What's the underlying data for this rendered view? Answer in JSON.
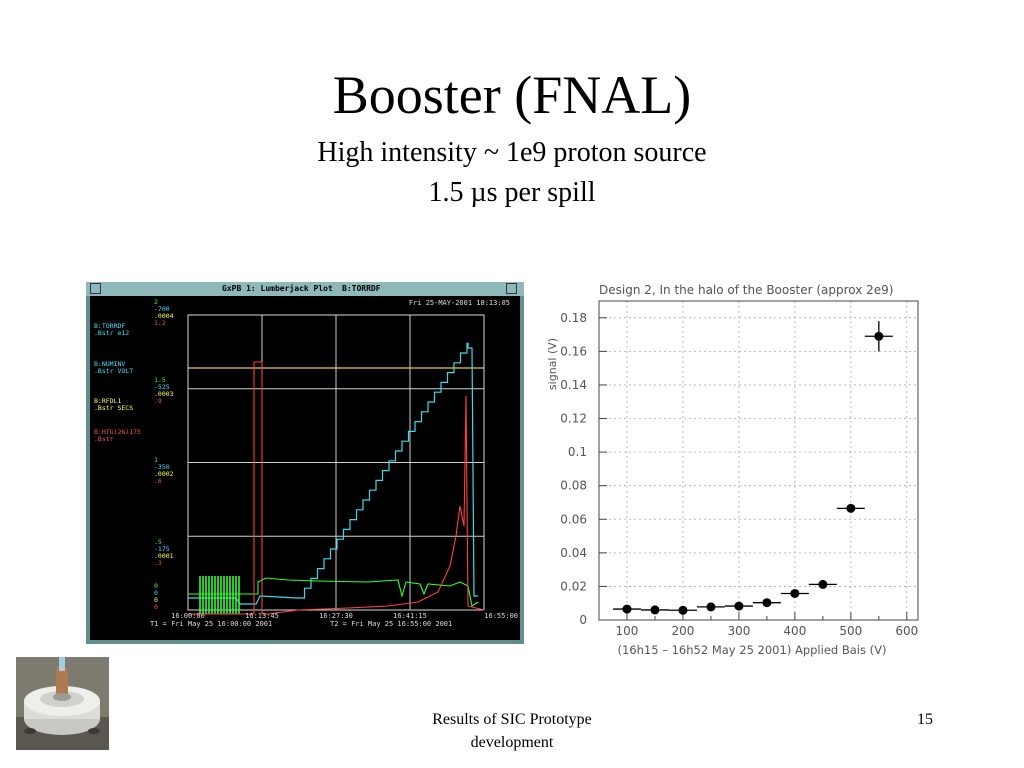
{
  "slide": {
    "title": "Booster (FNAL)",
    "subtitle1": "High intensity ~ 1e9 proton source",
    "subtitle2": "1.5 µs per spill",
    "footer_text_line1": "Results of SIC Prototype",
    "footer_text_line2": "development",
    "page_number": "15"
  },
  "lumberjack": {
    "window_title": "GxPB 1: Lumberjack Plot",
    "device": "B:TORRDF",
    "timestamp": "Fri 25-MAY-2001 18:13:05",
    "channels": [
      {
        "name": "B:TORRDF",
        "sub": ".Bstr  e12",
        "color": "#40e0ff",
        "max": "2",
        "min": "-700",
        "scale": ".0004",
        "extra": "1.2",
        "max_color": "#40ff40"
      },
      {
        "name": "B:NUMINV",
        "sub": ".Bstr  VOLT",
        "color": "#40e0ff",
        "max": "1.5",
        "min": "-525",
        "scale": ".0003",
        "extra": ".9",
        "max_color": "#40ff40"
      },
      {
        "name": "B:RFDL1",
        "sub": ".Bstr  SECS",
        "color": "#ffff40",
        "max": "",
        "min": "",
        "scale": "",
        "extra": "",
        "max_color": "#40ff40"
      },
      {
        "name": "B:HTG(26)175",
        "sub": ".Bstr",
        "color": "#ff5050",
        "max": "1",
        "min": "-350",
        "scale": ".0002",
        "extra": ".6",
        "max_color": "#40e0ff"
      },
      {
        "name": "",
        "sub": "",
        "color": "#40e0ff",
        "max": ".5",
        "min": "-175",
        "scale": ".0001",
        "extra": ".3",
        "max_color": "#40ff40"
      }
    ],
    "zero_labels": [
      "0",
      "0",
      "0",
      "0"
    ],
    "time_ticks": [
      "16:00:00",
      "16:13:45",
      "16:27:30",
      "16:41:15",
      "16:55:00"
    ],
    "t1": "T1 = Fri May 25 16:00:00 2001",
    "t2": "T2 = Fri May 25 16:55:00 2001",
    "colors": {
      "cyan": "#40d8e8",
      "green": "#30ff30",
      "red": "#ff4040",
      "yellow": "#e8c850"
    }
  },
  "chart_data": {
    "type": "scatter",
    "title": "Design 2, In the halo of the Booster (approx 2e9)",
    "xlabel": "(16h15 – 16h52 May 25 2001) Applied Bais (V)",
    "ylabel": "signal (V)",
    "xlim": [
      50,
      620
    ],
    "ylim": [
      0,
      0.19
    ],
    "xticks": [
      100,
      200,
      300,
      400,
      500,
      600
    ],
    "yticks": [
      0,
      0.02,
      0.04,
      0.06,
      0.08,
      0.1,
      0.12,
      0.14,
      0.16,
      0.18
    ],
    "ytick_labels": [
      "0",
      "0.02",
      "0.04",
      "0.06",
      "0.08",
      "0.1",
      "0.12",
      "0.14",
      "0.16",
      "0.18"
    ],
    "grid": true,
    "x_err": 25,
    "points": [
      {
        "x": 100,
        "y": 0.0065,
        "yerr": 0
      },
      {
        "x": 150,
        "y": 0.006,
        "yerr": 0
      },
      {
        "x": 200,
        "y": 0.0058,
        "yerr": 0
      },
      {
        "x": 250,
        "y": 0.0078,
        "yerr": 0
      },
      {
        "x": 300,
        "y": 0.0083,
        "yerr": 0
      },
      {
        "x": 350,
        "y": 0.0103,
        "yerr": 0
      },
      {
        "x": 400,
        "y": 0.0158,
        "yerr": 0
      },
      {
        "x": 450,
        "y": 0.0212,
        "yerr": 0
      },
      {
        "x": 500,
        "y": 0.0665,
        "yerr": 0
      },
      {
        "x": 550,
        "y": 0.169,
        "yerr": 0.009
      }
    ]
  }
}
